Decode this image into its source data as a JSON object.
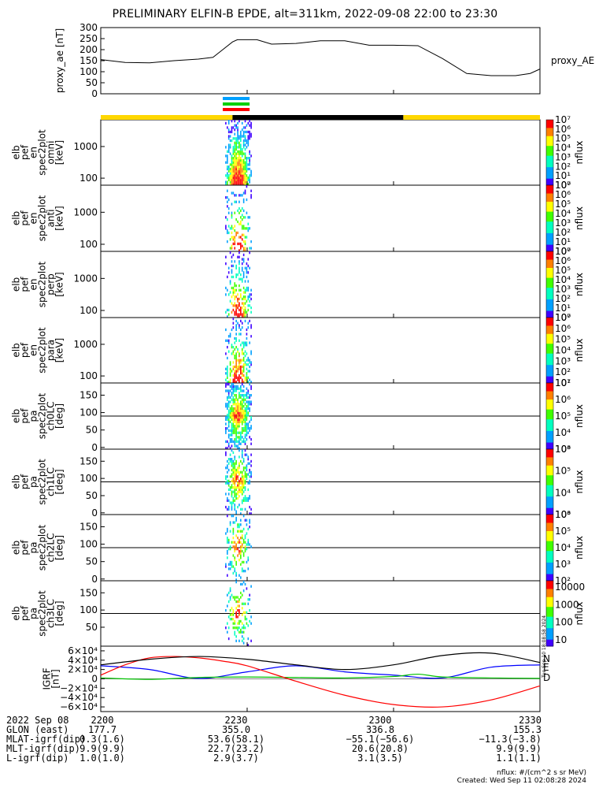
{
  "title": "PRELIMINARY ELFIN-B EPDE, alt=311km, 2022-09-08 22:00 to 23:30",
  "chart_data": {
    "type": "heatmap",
    "time_ticks": [
      "2200",
      "2230",
      "2300",
      "2330"
    ],
    "time_range_min": [
      0,
      90
    ],
    "panels": [
      {
        "id": "proxy_ae",
        "type": "line",
        "ylabel": "proxy_ae [nT]",
        "legend": "proxy_AE",
        "yticks": [
          0,
          50,
          100,
          150,
          200,
          250,
          300
        ],
        "ylim": [
          0,
          300
        ],
        "x": [
          0,
          5,
          10,
          15,
          20,
          23,
          25,
          27,
          28,
          30,
          32,
          35,
          40,
          45,
          50,
          55,
          60,
          65,
          70,
          75,
          80,
          85,
          88,
          90
        ],
        "y": [
          155,
          142,
          140,
          150,
          157,
          165,
          200,
          235,
          245,
          245,
          245,
          225,
          228,
          240,
          240,
          220,
          220,
          218,
          160,
          92,
          82,
          82,
          92,
          112
        ]
      },
      {
        "id": "elb_pef_en_spec2plot_omni",
        "type": "heatmap",
        "ylabel": [
          "elb",
          "pef",
          "en",
          "spec2plot",
          "omni",
          "[keV]"
        ],
        "yscale": "log",
        "yticks": [
          100,
          1000
        ],
        "ytick_labels": [
          "100",
          "1000"
        ],
        "ylim": [
          60,
          7000
        ],
        "zlabel": "nflux",
        "zrange_exp": [
          0,
          7
        ]
      },
      {
        "id": "elb_pef_en_spec2plot_anti",
        "type": "heatmap",
        "ylabel": [
          "elb",
          "pef",
          "en",
          "spec2plot",
          "anti",
          "[keV]"
        ],
        "yscale": "log",
        "yticks": [
          100,
          1000
        ],
        "ytick_labels": [
          "100",
          "1000"
        ],
        "ylim": [
          60,
          7000
        ],
        "zlabel": "nflux",
        "zrange_exp": [
          0,
          7
        ]
      },
      {
        "id": "elb_pef_en_spec2plot_perp",
        "type": "heatmap",
        "ylabel": [
          "elb",
          "pef",
          "en",
          "spec2plot",
          "perp",
          "[keV]"
        ],
        "yscale": "log",
        "yticks": [
          100,
          1000
        ],
        "ytick_labels": [
          "100",
          "1000"
        ],
        "ylim": [
          60,
          7000
        ],
        "zlabel": "nflux",
        "zrange_exp": [
          0,
          7
        ]
      },
      {
        "id": "elb_pef_en_spec2plot_para",
        "type": "heatmap",
        "ylabel": [
          "elb",
          "pef",
          "en",
          "spec2plot",
          "para",
          "[keV]"
        ],
        "yscale": "log",
        "yticks": [
          100,
          1000
        ],
        "ytick_labels": [
          "100",
          "1000"
        ],
        "ylim": [
          60,
          7000
        ],
        "zlabel": "nflux",
        "zrange_exp": [
          1,
          7
        ]
      },
      {
        "id": "elb_pef_pa_spec2plot_ch0LC",
        "type": "heatmap",
        "ylabel": [
          "elb",
          "pef",
          "pa",
          "spec2plot",
          "ch0LC",
          "[deg]"
        ],
        "yscale": "linear",
        "yticks": [
          0,
          50,
          100,
          150
        ],
        "ytick_labels": [
          "0",
          "50",
          "100",
          "150"
        ],
        "ylim": [
          -5,
          185
        ],
        "zlabel": "nflux",
        "zrange_exp": [
          3,
          7
        ],
        "reference_line": 90
      },
      {
        "id": "elb_pef_pa_spec2plot_ch1LC",
        "type": "heatmap",
        "ylabel": [
          "elb",
          "pef",
          "pa",
          "spec2plot",
          "ch1LC",
          "[deg]"
        ],
        "yscale": "linear",
        "yticks": [
          0,
          50,
          100,
          150
        ],
        "ytick_labels": [
          "0",
          "50",
          "100",
          "150"
        ],
        "ylim": [
          -5,
          185
        ],
        "zlabel": "nflux",
        "zrange_exp": [
          3,
          6
        ],
        "reference_line": 90
      },
      {
        "id": "elb_pef_pa_spec2plot_ch2LC",
        "type": "heatmap",
        "ylabel": [
          "elb",
          "pef",
          "pa",
          "spec2plot",
          "ch2LC",
          "[deg]"
        ],
        "yscale": "linear",
        "yticks": [
          0,
          50,
          100,
          150
        ],
        "ytick_labels": [
          "0",
          "50",
          "100",
          "150"
        ],
        "ylim": [
          -5,
          185
        ],
        "zlabel": "nflux",
        "zrange_exp": [
          2,
          6
        ],
        "reference_line": 90
      },
      {
        "id": "elb_pef_pa_spec2plot_ch3LC",
        "type": "heatmap",
        "ylabel": [
          "elb",
          "pef",
          "pa",
          "spec2plot",
          "ch3LC",
          "[deg]"
        ],
        "yscale": "linear",
        "yticks": [
          50,
          100,
          150
        ],
        "ytick_labels": [
          "50",
          "100",
          "150"
        ],
        "ylim": [
          -5,
          185
        ],
        "zlabel": "nflux",
        "zrange_labels": [
          "10",
          "100",
          "1000",
          "10000"
        ],
        "reference_line": 90
      },
      {
        "id": "igrf",
        "type": "line",
        "ylabel": [
          "IGRF",
          "[nT]"
        ],
        "ytick_labels": [
          "6×10⁴",
          "4×10⁴",
          "2×10⁴",
          "0",
          "−2×10⁴",
          "−4×10⁴",
          "−6×10⁴"
        ],
        "yticks": [
          60000,
          40000,
          20000,
          0,
          -20000,
          -40000,
          -60000
        ],
        "ylim": [
          -70000,
          70000
        ],
        "series": [
          {
            "name": "N",
            "color": "#0000ff",
            "x": [
              0,
              10,
              20,
              30,
              40,
              50,
              60,
              70,
              80,
              90
            ],
            "y": [
              28000,
              20000,
              1000,
              15000,
              28000,
              15000,
              8000,
              2000,
              25000,
              30000
            ]
          },
          {
            "name": "E",
            "color": "#00c000",
            "x": [
              0,
              10,
              20,
              30,
              40,
              50,
              60,
              65,
              70,
              80,
              90
            ],
            "y": [
              2000,
              -1000,
              3000,
              4000,
              3000,
              2000,
              5000,
              10000,
              4000,
              2000,
              1000
            ]
          },
          {
            "name": "D",
            "color": "#ff0000",
            "x": [
              0,
              5,
              10,
              15,
              20,
              25,
              30,
              40,
              50,
              60,
              70,
              80,
              90
            ],
            "y": [
              8000,
              30000,
              45000,
              48000,
              45000,
              38000,
              28000,
              -5000,
              -35000,
              -55000,
              -60000,
              -45000,
              -15000
            ]
          },
          {
            "name": "",
            "color": "#000000",
            "x": [
              0,
              10,
              20,
              30,
              40,
              50,
              60,
              70,
              80,
              90
            ],
            "y": [
              30000,
              42000,
              48000,
              42000,
              30000,
              20000,
              30000,
              50000,
              55000,
              35000
            ]
          }
        ]
      }
    ],
    "status_bars": {
      "sunlight": [
        {
          "from": 0,
          "to": 27,
          "color": "#ffd700"
        },
        {
          "from": 27,
          "to": 62,
          "color": "#000000"
        },
        {
          "from": 62,
          "to": 90,
          "color": "#ffd700"
        }
      ],
      "instrument": [
        "#00a0ff",
        "#00d000",
        "#ff0000"
      ]
    },
    "colorbar_exponents": [
      "10⁰",
      "10¹",
      "10²",
      "10³",
      "10⁴",
      "10⁵",
      "10⁶",
      "10⁷"
    ],
    "orbit_table": {
      "rows": [
        {
          "label": "2022 Sep 08",
          "values": [
            "2200",
            "2230",
            "2300",
            "2330"
          ]
        },
        {
          "label": "GLON (east)",
          "values": [
            "177.7",
            "355.0",
            "336.8",
            "155.3"
          ]
        },
        {
          "label": "MLAT-igrf(dip)",
          "values": [
            "0.3(1.6)",
            "53.6(58.1)",
            "−55.1(−56.6)",
            "−11.3(−3.8)"
          ]
        },
        {
          "label": "MLT-igrf(dip)",
          "values": [
            "9.9(9.9)",
            "22.7(23.2)",
            "20.6(20.8)",
            "9.9(9.9)"
          ]
        },
        {
          "label": "L-igrf(dip)",
          "values": [
            "1.0(1.0)",
            "2.9(3.7)",
            "3.1(3.5)",
            "1.1(1.1)"
          ]
        }
      ]
    }
  },
  "notes": {
    "units": "nflux: #/(cm^2 s sr MeV)",
    "created": "Created: Wed Sep 11 02:08:28 2024",
    "stamp": "Tue Sep 10 18:08:58 2024"
  }
}
